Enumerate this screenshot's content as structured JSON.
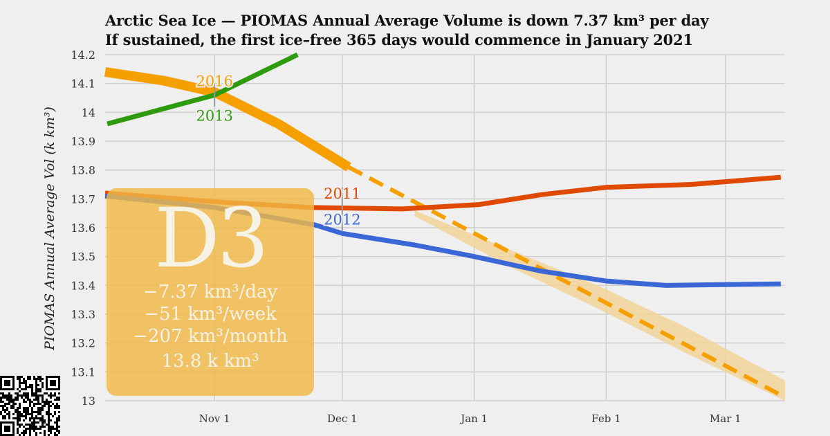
{
  "title_line1": "Arctic Sea Ice — PIOMAS Annual Average Volume is down 7.37 km³ per day",
  "title_line2": "If sustained, the first ice–free 365 days would commence in January 2021",
  "badge": {
    "code": "D3",
    "per_day": "−7.37 km³/day",
    "per_week": "−51 km³/week",
    "per_month": "−207 km³/month",
    "current": "13.8 k km³"
  },
  "colors": {
    "y2016": "#f5a000",
    "y2013": "#2e9a0e",
    "y2011": "#e04a00",
    "y2012": "#3a66d6",
    "band": "#f3d49a"
  },
  "chart_data": {
    "type": "line",
    "title": "Arctic Sea Ice — PIOMAS Annual Average Volume",
    "xlabel": "",
    "ylabel": "PIOMAS Annual Average Vol (k km³)",
    "x_unit": "days since Nov 1",
    "xlim": [
      -25.7,
      134
    ],
    "ylim": [
      13,
      14.2
    ],
    "yticks": [
      14.2,
      14.1,
      14,
      13.9,
      13.8,
      13.7,
      13.6,
      13.5,
      13.4,
      13.3,
      13.2,
      13.1,
      13
    ],
    "ytick_labels": [
      "14.2",
      "14.1",
      "14",
      "13.9",
      "13.8",
      "13.7",
      "13.6",
      "13.5",
      "13.4",
      "13.3",
      "13.2",
      "13.1",
      "13"
    ],
    "xticks": [
      0,
      30,
      61,
      92,
      120
    ],
    "xtick_labels": [
      "Nov 1",
      "Dec 1",
      "Jan 1",
      "Feb 1",
      "Mar 1"
    ],
    "grid": true,
    "series": [
      {
        "name": "2016",
        "color_key": "y2016",
        "style": "thick",
        "x": [
          -25.7,
          -12,
          0,
          15,
          31.5
        ],
        "y": [
          14.14,
          14.11,
          14.07,
          13.96,
          13.81
        ]
      },
      {
        "name": "2016 projection",
        "color_key": "y2016",
        "style": "dashed",
        "x": [
          31.5,
          133
        ],
        "y": [
          13.81,
          13.02
        ]
      },
      {
        "name": "2013",
        "color_key": "y2013",
        "style": "normal",
        "x": [
          -25.2,
          0,
          19.5
        ],
        "y": [
          13.96,
          14.06,
          14.2
        ]
      },
      {
        "name": "2011",
        "color_key": "y2011",
        "style": "normal",
        "x": [
          -25.7,
          0,
          23,
          44,
          62,
          77,
          92,
          112,
          133
        ],
        "y": [
          13.72,
          13.69,
          13.67,
          13.665,
          13.68,
          13.715,
          13.74,
          13.75,
          13.775
        ]
      },
      {
        "name": "2012",
        "color_key": "y2012",
        "style": "normal",
        "x": [
          -25.7,
          0,
          23.5,
          30,
          47,
          61,
          76.5,
          92,
          106,
          133
        ],
        "y": [
          13.71,
          13.67,
          13.61,
          13.58,
          13.54,
          13.5,
          13.45,
          13.415,
          13.4,
          13.405
        ]
      }
    ],
    "band": {
      "x": [
        47,
        70,
        90,
        110,
        134
      ],
      "upper": [
        13.66,
        13.52,
        13.4,
        13.26,
        13.07
      ],
      "lower": [
        13.64,
        13.46,
        13.32,
        13.17,
        13.0
      ]
    },
    "annotations": [
      {
        "text": "2016",
        "x": 0,
        "y": 14.11,
        "color_key": "y2016"
      },
      {
        "text": "2013",
        "x": 0,
        "y": 13.99,
        "color_key": "y2013"
      },
      {
        "text": "2011",
        "x": 30,
        "y": 13.72,
        "color_key": "y2011"
      },
      {
        "text": "2012",
        "x": 30,
        "y": 13.63,
        "color_key": "y2012"
      }
    ]
  }
}
